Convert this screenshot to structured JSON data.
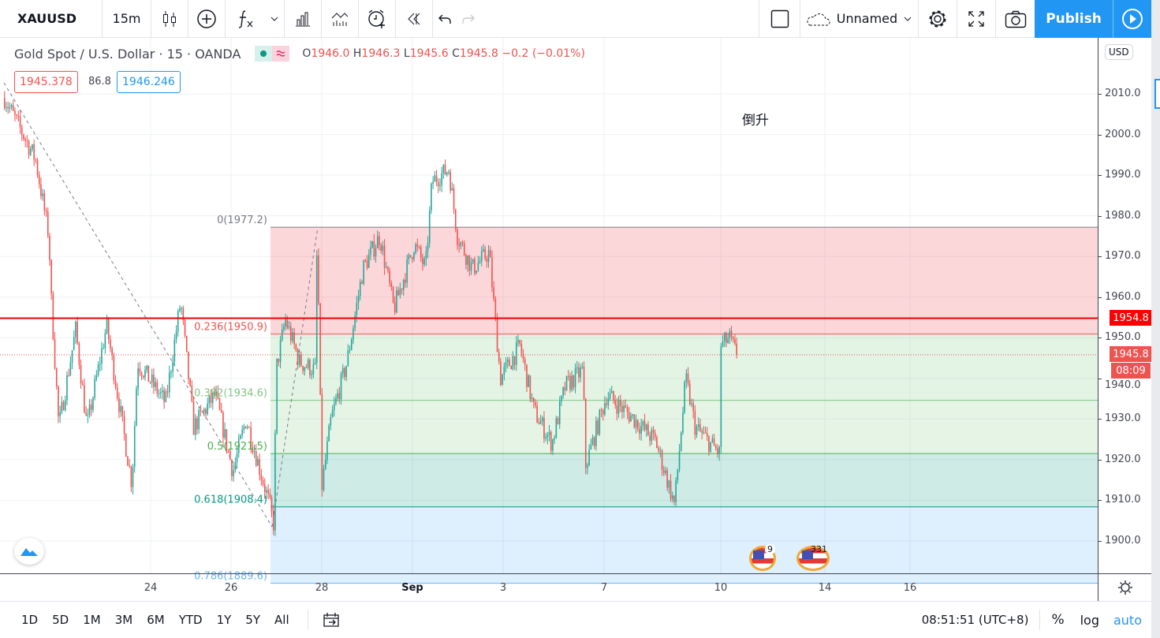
{
  "toolbar": {
    "symbol": "XAUUSD",
    "interval": "15m",
    "layout_name": "Unnamed",
    "publish": "Publish",
    "icons": [
      "candles-icon",
      "add-compare-icon",
      "indicators-icon",
      "chevron-down-icon",
      "financials-icon",
      "templates-icon",
      "alert-icon",
      "replay-icon",
      "undo-icon",
      "redo-icon",
      "select-layout-icon",
      "cloud-icon",
      "settings-icon",
      "fullscreen-icon",
      "camera-icon",
      "play-icon"
    ]
  },
  "legend": {
    "title": "Gold Spot / U.S. Dollar · 15 · OANDA",
    "o_label": "O",
    "o": "1946.0",
    "h_label": "H",
    "h": "1946.3",
    "l_label": "L",
    "l": "1945.6",
    "c_label": "C",
    "c": "1945.8",
    "change": "−0.2 (−0.01%)",
    "bid": "1945.378",
    "spread": "86.8",
    "ask": "1946.246"
  },
  "annotation_text": "倒升",
  "events": [
    {
      "icon": "us-flag-icon",
      "count": "9"
    },
    {
      "icon": "us-flag-icon",
      "count": "331"
    }
  ],
  "price_axis": {
    "currency": "USD",
    "ticks": [
      "2010.0",
      "2000.0",
      "1990.0",
      "1980.0",
      "1970.0",
      "1960.0",
      "1950.0",
      "1940.0",
      "1930.0",
      "1920.0",
      "1910.0",
      "1900.0"
    ],
    "alert_line": "1954.8",
    "last_price": "1945.8",
    "countdown": "08:09"
  },
  "time_axis": {
    "ticks": [
      {
        "label": "24",
        "date": "Aug24 00:00"
      },
      {
        "label": "26",
        "date": "Aug26 00:00"
      },
      {
        "label": "28",
        "date": "Aug28 00:00"
      },
      {
        "label": "Sep",
        "date": "Sep1 00:00"
      },
      {
        "label": "3",
        "date": "Sep3 00:00"
      },
      {
        "label": "7",
        "date": "Sep7 00:00"
      },
      {
        "label": "10",
        "date": "Sep10 00:00"
      },
      {
        "label": "14",
        "date": "Sep14 00:00"
      },
      {
        "label": "16",
        "date": "Sep16 00:00"
      }
    ]
  },
  "fib": {
    "levels": [
      {
        "label": "0(1977.2)",
        "price": 1977.2,
        "color": "#787b86"
      },
      {
        "label": "0.236(1950.9)",
        "price": 1950.9,
        "color": "#ef5350"
      },
      {
        "label": "0.382(1934.6)",
        "price": 1934.6,
        "color": "#81c784"
      },
      {
        "label": "0.5(1921.5)",
        "price": 1921.5,
        "color": "#4caf50"
      },
      {
        "label": "0.618(1908.4)",
        "price": 1908.4,
        "color": "#089981"
      },
      {
        "label": "0.786(1889.6)",
        "price": 1889.6,
        "color": "#64b5f6"
      }
    ]
  },
  "bottom_bar": {
    "ranges": [
      "1D",
      "5D",
      "1M",
      "3M",
      "6M",
      "YTD",
      "1Y",
      "5Y",
      "All"
    ],
    "clock": "08:51:51 (UTC+8)",
    "percent": "%",
    "log": "log",
    "auto": "auto"
  },
  "colors": {
    "up": "#26a69a",
    "down": "#ef5350",
    "accent": "#2196f3",
    "alert": "#f00"
  },
  "chart_data": {
    "type": "candlestick",
    "symbol": "XAUUSD",
    "interval": "15",
    "ylim": [
      1895,
      2020
    ],
    "path": [
      [
        "Aug18 18:00",
        2009
      ],
      [
        "Aug19 10:30",
        1994
      ],
      [
        "Aug19 17:40",
        1975
      ],
      [
        "Aug19 19:00",
        1959
      ],
      [
        "Aug19 23:00",
        1928
      ],
      [
        "Aug20 08:00",
        1952
      ],
      [
        "Aug20 14:00",
        1928
      ],
      [
        "Aug21 00:30",
        1953
      ],
      [
        "Aug21 14:00",
        1914
      ],
      [
        "Aug21 17:00",
        1944
      ],
      [
        "Aug24 08:00",
        1934
      ],
      [
        "Aug24 16:00",
        1959
      ],
      [
        "Aug25 01:30",
        1928
      ],
      [
        "Aug25 13:00",
        1936
      ],
      [
        "Aug26 01:00",
        1917
      ],
      [
        "Aug26 08:00",
        1930
      ],
      [
        "Aug26 20:30",
        1909
      ],
      [
        "Aug26 23:00",
        1903.5
      ],
      [
        "Aug27 00:00",
        1942
      ],
      [
        "Aug27 05:00",
        1954.5
      ],
      [
        "Aug27 12:30",
        1944
      ],
      [
        "Aug27 21:00",
        1942
      ],
      [
        "Aug27 22:00",
        1977
      ],
      [
        "Aug28 00:00",
        1913
      ],
      [
        "Aug28 05:00",
        1930
      ],
      [
        "Aug28 13:30",
        1944
      ],
      [
        "Aug28 22:00",
        1967
      ],
      [
        "Aug31 07:00",
        1975
      ],
      [
        "Aug31 14:30",
        1957
      ],
      [
        "Sep1 01:00",
        1973
      ],
      [
        "Sep1 07:00",
        1967
      ],
      [
        "Sep1 10:30",
        1988.5
      ],
      [
        "Sep1 19:30",
        1991.5
      ],
      [
        "Sep2 00:00",
        1975
      ],
      [
        "Sep2 08:00",
        1967
      ],
      [
        "Sep2 17:00",
        1971
      ],
      [
        "Sep2 23:00",
        1940
      ],
      [
        "Sep3 09:00",
        1948
      ],
      [
        "Sep3 16:30",
        1932
      ],
      [
        "Sep4 00:00",
        1924
      ],
      [
        "Sep4 07:00",
        1938
      ],
      [
        "Sep4 16:30",
        1942
      ],
      [
        "Sep4 18:00",
        1918.6
      ],
      [
        "Sep7 01:30",
        1936
      ],
      [
        "Sep7 16:00",
        1930
      ],
      [
        "Sep8 07:00",
        1924.5
      ],
      [
        "Sep8 17:00",
        1909
      ],
      [
        "Sep8 23:00",
        1940
      ],
      [
        "Sep9 07:00",
        1928
      ],
      [
        "Sep9 20:00",
        1921.5
      ],
      [
        "Sep10 00:00",
        1948
      ],
      [
        "Sep10 04:30",
        1950
      ],
      [
        "Sep10 08:30",
        1945.8
      ]
    ]
  }
}
